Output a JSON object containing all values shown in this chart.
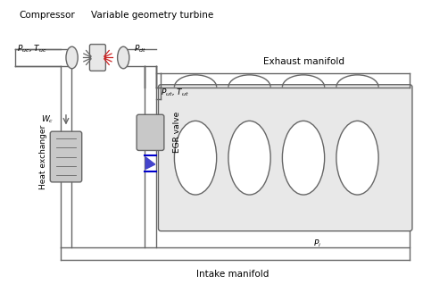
{
  "bg_color": "#ffffff",
  "line_color": "#666666",
  "fill_gray": "#c8c8c8",
  "fill_light": "#e8e8e8",
  "fill_white": "#ffffff",
  "red_color": "#cc2222",
  "blue_color": "#0000cc",
  "blue_fill": "#4444cc",
  "text_color": "#000000",
  "labels": {
    "compressor": "Compressor",
    "turbine": "Variable geometry turbine",
    "puc_tuc": "$P_{uc}$, $T_{uc}$",
    "pdt": "$P_{dt}$",
    "wc": "$W_c$",
    "put_tut": "$P_{ut}$, $T_{ut}$",
    "pi": "$P_i$",
    "exhaust": "Exhaust manifold",
    "intake": "Intake manifold",
    "heat_exchanger": "Heat exchanger",
    "egr_valve": "EGR valve"
  }
}
